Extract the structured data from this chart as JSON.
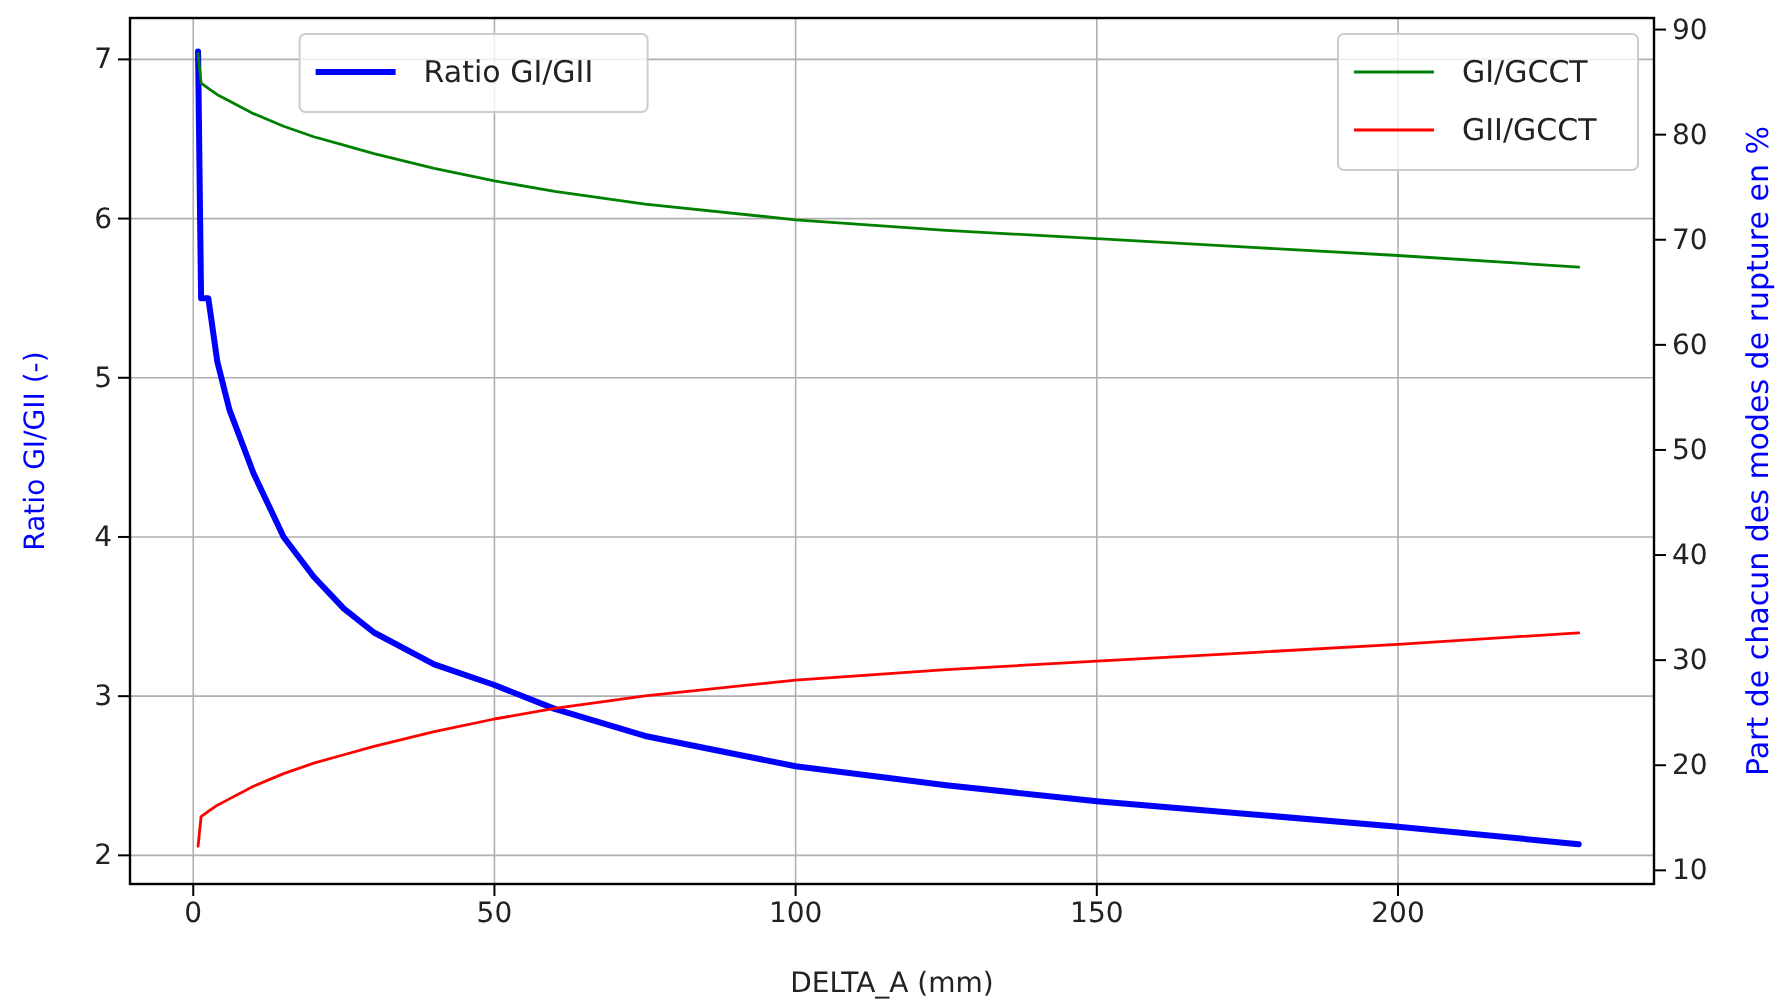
{
  "chart_data": {
    "type": "line",
    "xlabel": "DELTA_A (mm)",
    "ylabel": "Ratio GI/GII (-)",
    "y2label": "Part de chacun des modes de rupture en %",
    "x": [
      0.8,
      1.3,
      2.5,
      4,
      6,
      10,
      15,
      20,
      25,
      30,
      40,
      50,
      60,
      75,
      100,
      125,
      150,
      175,
      200,
      230
    ],
    "series": [
      {
        "name": "Ratio GI/GII",
        "color": "#0000ff",
        "values": [
          7.05,
          5.5,
          5.5,
          5.1,
          4.8,
          4.4,
          4.0,
          3.75,
          3.55,
          3.4,
          3.2,
          3.07,
          2.92,
          2.75,
          2.56,
          2.44,
          2.34,
          2.26,
          2.18,
          2.07
        ]
      },
      {
        "name": "GI/GCCT",
        "color": "#008000",
        "axis": "y2",
        "values": [
          87.7,
          84.9,
          84.4,
          83.8,
          83.2,
          82.0,
          80.8,
          79.8,
          79.0,
          78.2,
          76.8,
          75.6,
          74.6,
          73.4,
          71.9,
          70.9,
          70.1,
          69.3,
          68.5,
          67.4
        ]
      },
      {
        "name": "GII/GCCT",
        "color": "#ff0000",
        "axis": "y2",
        "values": [
          12.3,
          15.1,
          15.6,
          16.2,
          16.8,
          18.0,
          19.2,
          20.2,
          21.0,
          21.8,
          23.2,
          24.4,
          25.4,
          26.6,
          28.1,
          29.1,
          29.9,
          30.7,
          31.5,
          32.6
        ]
      }
    ],
    "xlim": [
      -10.5,
      242.5
    ],
    "xticks": [
      0,
      50,
      100,
      150,
      200
    ],
    "ylim": [
      1.82,
      7.26
    ],
    "yticks": [
      2,
      3,
      4,
      5,
      6,
      7
    ],
    "y2lim": [
      8.7,
      91.1
    ],
    "y2ticks": [
      10,
      20,
      30,
      40,
      50,
      60,
      70,
      80,
      90
    ],
    "grid": true,
    "legend": "top"
  }
}
